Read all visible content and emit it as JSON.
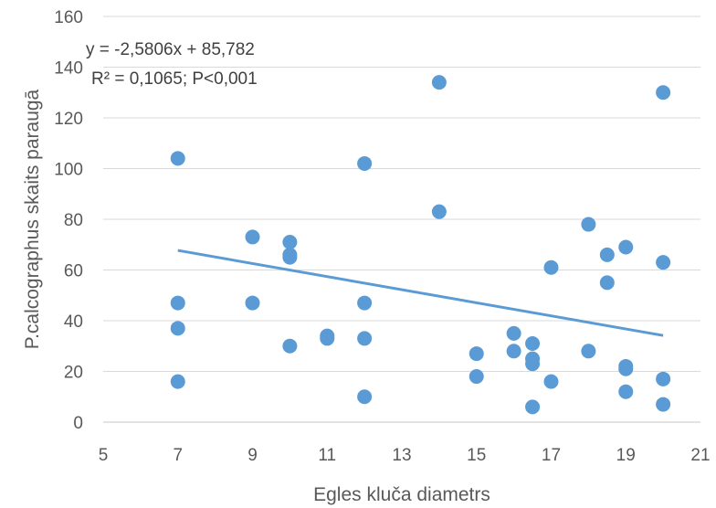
{
  "chart_data": {
    "type": "scatter",
    "title": "",
    "xlabel": "Egles kluča diametrs",
    "ylabel": "P.calcographus skaits paraugā",
    "xlim": [
      5,
      21
    ],
    "ylim": [
      0,
      160
    ],
    "xticks": [
      5,
      7,
      9,
      11,
      13,
      15,
      17,
      19,
      21
    ],
    "yticks": [
      0,
      20,
      40,
      60,
      80,
      100,
      120,
      140,
      160
    ],
    "grid": "horizontal",
    "legend": "none",
    "colors": {
      "points": "#5b9bd5",
      "trendline": "#5b9bd5",
      "grid": "#d9d9d9",
      "text": "#595959"
    },
    "points": [
      [
        7,
        104
      ],
      [
        7,
        47
      ],
      [
        7,
        37
      ],
      [
        7,
        16
      ],
      [
        9,
        73
      ],
      [
        9,
        47
      ],
      [
        10,
        71
      ],
      [
        10,
        66
      ],
      [
        10,
        65
      ],
      [
        10,
        30
      ],
      [
        11,
        34
      ],
      [
        11,
        33
      ],
      [
        12,
        102
      ],
      [
        12,
        47
      ],
      [
        12,
        33
      ],
      [
        12,
        10
      ],
      [
        14,
        134
      ],
      [
        14,
        83
      ],
      [
        15,
        27
      ],
      [
        15,
        18
      ],
      [
        16,
        35
      ],
      [
        16,
        28
      ],
      [
        16.5,
        31
      ],
      [
        16.5,
        25
      ],
      [
        16.5,
        23
      ],
      [
        16.5,
        6
      ],
      [
        17,
        61
      ],
      [
        17,
        16
      ],
      [
        18,
        78
      ],
      [
        18,
        28
      ],
      [
        18.5,
        66
      ],
      [
        18.5,
        55
      ],
      [
        19,
        69
      ],
      [
        19,
        22
      ],
      [
        19,
        21
      ],
      [
        19,
        12
      ],
      [
        20,
        130
      ],
      [
        20,
        63
      ],
      [
        20,
        17
      ],
      [
        20,
        7
      ]
    ],
    "trendline": {
      "slope": -2.5806,
      "intercept": 85.782,
      "x_range": [
        7,
        20
      ]
    },
    "annotation": {
      "line1": "y = -2,5806x + 85,782",
      "line2": "R² = 0,1065; P<0,001"
    }
  }
}
